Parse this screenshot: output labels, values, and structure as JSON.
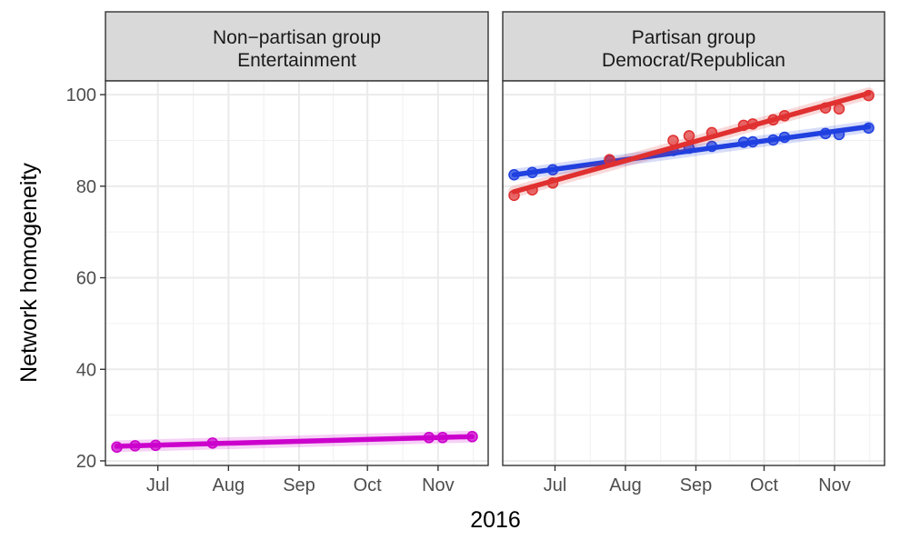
{
  "chart_data": {
    "type": "line",
    "xlabel": "2016",
    "ylabel": "Network homogeneity",
    "ylim": [
      19,
      103
    ],
    "y_ticks": [
      20,
      40,
      60,
      80,
      100
    ],
    "x_ticks": [
      "Jul",
      "Aug",
      "Sep",
      "Oct",
      "Nov"
    ],
    "x_tick_dates": [
      "2016-07-01",
      "2016-08-01",
      "2016-09-01",
      "2016-10-01",
      "2016-11-01"
    ],
    "x_range": [
      "2016-06-08",
      "2016-11-23"
    ],
    "grid": true,
    "legend": "none",
    "panels": [
      {
        "strip": [
          "Non−partisan group",
          "Entertainment"
        ],
        "series": [
          {
            "color": "#cc00cc",
            "points": [
              {
                "x": "2016-06-13",
                "y": 23.0
              },
              {
                "x": "2016-06-21",
                "y": 23.3
              },
              {
                "x": "2016-06-30",
                "y": 23.4
              },
              {
                "x": "2016-07-25",
                "y": 23.9
              },
              {
                "x": "2016-10-28",
                "y": 25.1
              },
              {
                "x": "2016-11-03",
                "y": 25.1
              },
              {
                "x": "2016-11-16",
                "y": 25.3
              }
            ],
            "fit": [
              {
                "x": "2016-06-13",
                "y": 23.2
              },
              {
                "x": "2016-11-16",
                "y": 25.3
              }
            ]
          }
        ]
      },
      {
        "strip": [
          "Partisan group",
          "Democrat/Republican"
        ],
        "series": [
          {
            "color": "#2040e0",
            "points": [
              {
                "x": "2016-06-13",
                "y": 82.5
              },
              {
                "x": "2016-06-21",
                "y": 83.0
              },
              {
                "x": "2016-06-30",
                "y": 83.6
              },
              {
                "x": "2016-07-25",
                "y": 85.6
              },
              {
                "x": "2016-08-22",
                "y": 87.8
              },
              {
                "x": "2016-08-29",
                "y": 88.3
              },
              {
                "x": "2016-09-08",
                "y": 88.7
              },
              {
                "x": "2016-09-22",
                "y": 89.6
              },
              {
                "x": "2016-09-26",
                "y": 89.7
              },
              {
                "x": "2016-10-05",
                "y": 90.1
              },
              {
                "x": "2016-10-10",
                "y": 90.7
              },
              {
                "x": "2016-10-28",
                "y": 91.5
              },
              {
                "x": "2016-11-03",
                "y": 91.3
              },
              {
                "x": "2016-11-16",
                "y": 92.7
              }
            ],
            "fit": [
              {
                "x": "2016-06-13",
                "y": 82.5
              },
              {
                "x": "2016-11-16",
                "y": 93.0
              }
            ]
          },
          {
            "color": "#e03030",
            "points": [
              {
                "x": "2016-06-13",
                "y": 78.0
              },
              {
                "x": "2016-06-21",
                "y": 79.2
              },
              {
                "x": "2016-06-30",
                "y": 80.7
              },
              {
                "x": "2016-07-25",
                "y": 85.8
              },
              {
                "x": "2016-08-22",
                "y": 90.0
              },
              {
                "x": "2016-08-29",
                "y": 91.0
              },
              {
                "x": "2016-09-08",
                "y": 91.7
              },
              {
                "x": "2016-09-22",
                "y": 93.3
              },
              {
                "x": "2016-09-26",
                "y": 93.6
              },
              {
                "x": "2016-10-05",
                "y": 94.5
              },
              {
                "x": "2016-10-10",
                "y": 95.4
              },
              {
                "x": "2016-10-28",
                "y": 97.1
              },
              {
                "x": "2016-11-03",
                "y": 96.9
              },
              {
                "x": "2016-11-16",
                "y": 99.8
              }
            ],
            "fit": [
              {
                "x": "2016-06-13",
                "y": 78.8
              },
              {
                "x": "2016-11-16",
                "y": 100.3
              }
            ]
          }
        ]
      }
    ]
  }
}
